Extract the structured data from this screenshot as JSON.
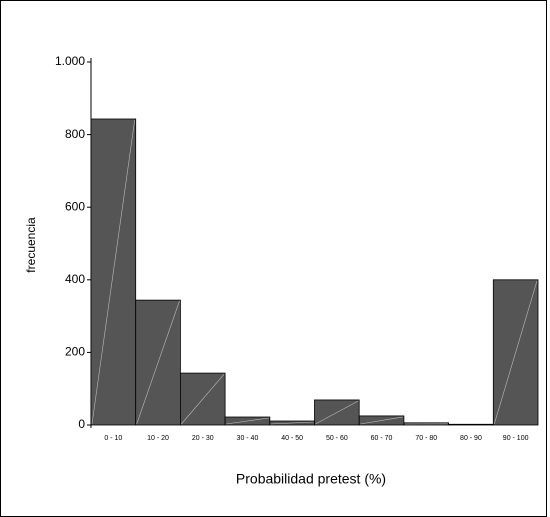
{
  "chart_data": {
    "type": "bar",
    "x_label": "Probabilidad pretest (%)",
    "y_label": "frecuencia",
    "categories": [
      "0 - 10",
      "10 - 20",
      "20 - 30",
      "30 - 40",
      "40 - 50",
      "50 - 60",
      "60 - 70",
      "70 - 80",
      "80 - 90",
      "90 - 100"
    ],
    "values": [
      843,
      344,
      143,
      22,
      11,
      69,
      25,
      6,
      2,
      400
    ],
    "color": "#555555",
    "ylim": [
      0,
      1000
    ],
    "yticks": [
      0,
      200,
      400,
      600,
      800,
      {
        "value": 1000,
        "label": "1.000"
      }
    ],
    "grid": false
  }
}
